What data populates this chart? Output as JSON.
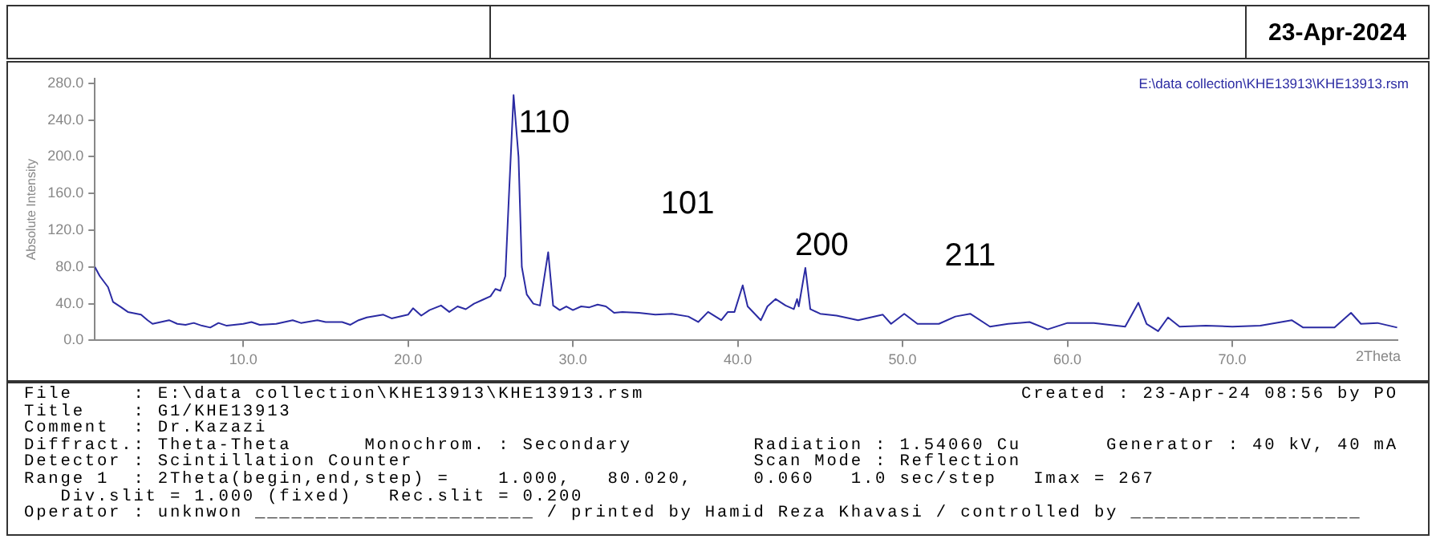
{
  "chart_data": {
    "type": "line",
    "title": "23-Apr-2024",
    "ylabel": "Absolute Intensity",
    "xlim": [
      1.0,
      80.02
    ],
    "ylim": [
      0,
      285
    ],
    "xticks": [
      {
        "value": 10,
        "label": "10.0"
      },
      {
        "value": 20,
        "label": "20.0"
      },
      {
        "value": 30,
        "label": "30.0"
      },
      {
        "value": 40,
        "label": "40.0"
      },
      {
        "value": 50,
        "label": "50.0"
      },
      {
        "value": 60,
        "label": "60.0"
      },
      {
        "value": 70,
        "label": "70.0"
      }
    ],
    "xlabel": "2Theta",
    "yticks": [
      {
        "value": 0,
        "label": "0.0"
      },
      {
        "value": 40,
        "label": "40.0"
      },
      {
        "value": 80,
        "label": "80.0"
      },
      {
        "value": 120,
        "label": "120.0"
      },
      {
        "value": 160,
        "label": "160.0"
      },
      {
        "value": 200,
        "label": "200.0"
      },
      {
        "value": 240,
        "label": "240.0"
      },
      {
        "value": 280,
        "label": "280.0"
      }
    ],
    "grid": false,
    "legend": false,
    "marker": "none",
    "line_style": "solid",
    "x": [
      1.0,
      1.3,
      1.8,
      2.1,
      2.6,
      3.0,
      3.8,
      4.2,
      4.5,
      5.0,
      5.5,
      6.0,
      6.5,
      7.0,
      7.5,
      8.0,
      8.5,
      9.0,
      10.0,
      10.5,
      11.0,
      12.0,
      13.0,
      13.5,
      14.5,
      15.0,
      16.0,
      16.5,
      17.0,
      17.5,
      18.5,
      19.0,
      20.0,
      20.3,
      20.8,
      21.3,
      22.0,
      22.5,
      23.0,
      23.5,
      24.0,
      24.5,
      25.0,
      25.3,
      25.6,
      25.9,
      26.1,
      26.4,
      26.7,
      26.9,
      27.2,
      27.6,
      28.0,
      28.5,
      28.8,
      29.2,
      29.6,
      30.0,
      30.5,
      31.0,
      31.5,
      32.0,
      32.5,
      33.0,
      34.0,
      35.0,
      36.0,
      37.0,
      37.6,
      38.2,
      39.0,
      39.4,
      39.8,
      40.3,
      40.6,
      41.4,
      41.8,
      42.3,
      42.9,
      43.4,
      43.6,
      43.7,
      44.1,
      44.4,
      45.0,
      46.0,
      47.3,
      48.8,
      49.3,
      50.1,
      50.9,
      52.2,
      53.2,
      54.1,
      55.3,
      56.4,
      57.7,
      58.8,
      60.0,
      61.6,
      63.5,
      64.3,
      64.8,
      65.5,
      66.1,
      66.8,
      68.4,
      70.0,
      71.7,
      73.6,
      74.3,
      76.2,
      77.2,
      77.8,
      78.8,
      80.0
    ],
    "series": [
      {
        "color": "#2b2ba3",
        "values": [
          80,
          70,
          58,
          42,
          36,
          31,
          28,
          22,
          18,
          20,
          22,
          18,
          17,
          19,
          16,
          14,
          19,
          16,
          18,
          20,
          17,
          18,
          22,
          19,
          22,
          20,
          20,
          17,
          22,
          25,
          28,
          24,
          28,
          35,
          27,
          33,
          38,
          31,
          37,
          34,
          40,
          44,
          48,
          56,
          54,
          70,
          150,
          267,
          200,
          80,
          50,
          40,
          38,
          96,
          38,
          33,
          37,
          33,
          37,
          36,
          39,
          37,
          30,
          31,
          30,
          28,
          29,
          26,
          20,
          31,
          22,
          31,
          31,
          60,
          37,
          22,
          37,
          45,
          38,
          34,
          45,
          37,
          79,
          34,
          29,
          27,
          22,
          28,
          18,
          29,
          18,
          18,
          26,
          29,
          15,
          18,
          20,
          12,
          19,
          19,
          15,
          41,
          18,
          10,
          25,
          15,
          16,
          15,
          16,
          22,
          14,
          14,
          30,
          18,
          19,
          14
        ]
      }
    ],
    "annotations": [
      "E:\\data collection\\KHE13913\\KHE13913.rsm",
      "110",
      "101",
      "200",
      "211",
      "File     : E:\\data collection\\KHE13913\\KHE13913.rsm                               Created : 23-Apr-24 08:56 by PO",
      "Title    : G1/KHE13913",
      "Comment  : Dr.Kazazi",
      "Diffract.: Theta-Theta      Monochrom. : Secondary          Radiation : 1.54060 Cu       Generator : 40 kV, 40 mA",
      "Detector : Scintillation Counter                            Scan Mode : Reflection",
      "Range 1  : 2Theta(begin,end,step) =    1.000,   80.020,     0.060   1.0 sec/step   Imax = 267",
      "   Div.slit = 1.000 (fixed)   Rec.slit = 0.200",
      "Operator : unknwon _______________________ / printed by Hamid Reza Khavasi / controlled by ___________________"
    ]
  }
}
